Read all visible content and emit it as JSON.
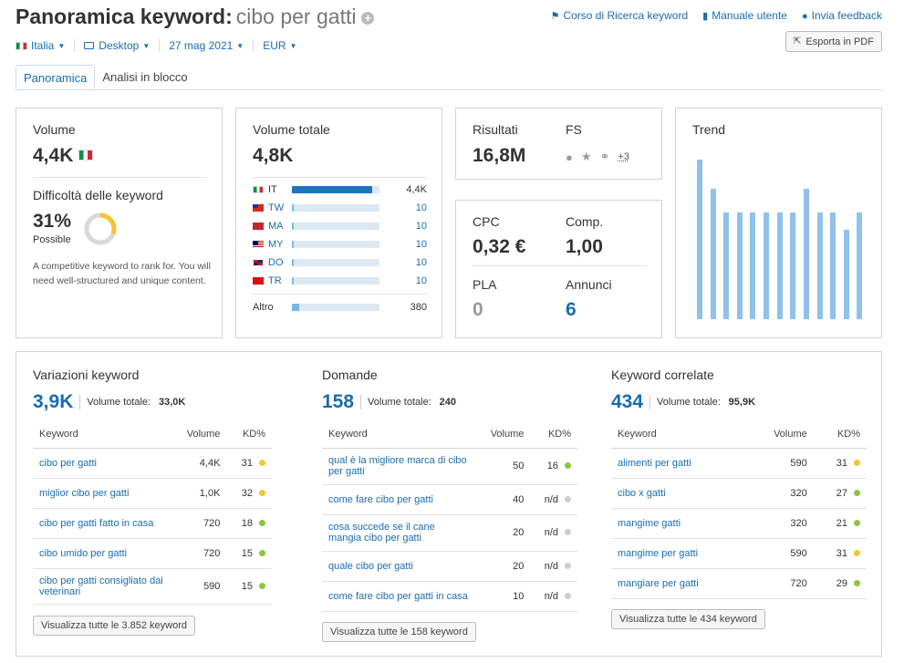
{
  "header": {
    "title": "Panoramica keyword:",
    "keyword": "cibo per gatti",
    "links": [
      {
        "icon": "graduation-cap-icon",
        "label": "Corso di Ricerca keyword"
      },
      {
        "icon": "book-icon",
        "label": "Manuale utente"
      },
      {
        "icon": "speech-bubble-icon",
        "label": "Invia feedback"
      }
    ],
    "filters": {
      "country": "Italia",
      "device": "Desktop",
      "date": "27 mag 2021",
      "currency": "EUR"
    },
    "export_label": "Esporta in PDF"
  },
  "tabs": [
    "Panoramica",
    "Analisi in blocco"
  ],
  "volume": {
    "label": "Volume",
    "value": "4,4K",
    "difficulty_label": "Difficoltà delle keyword",
    "difficulty_value": "31%",
    "difficulty_percent": 31,
    "difficulty_level": "Possible",
    "difficulty_desc": "A competitive keyword to rank for. You will need well-structured and unique content."
  },
  "volume_totale": {
    "label": "Volume totale",
    "value": "4,8K",
    "countries": [
      {
        "code": "IT",
        "value": "4,4K",
        "fill": 0.92
      },
      {
        "code": "TW",
        "value": "10",
        "fill": 0.02
      },
      {
        "code": "MA",
        "value": "10",
        "fill": 0.02
      },
      {
        "code": "MY",
        "value": "10",
        "fill": 0.02
      },
      {
        "code": "DO",
        "value": "10",
        "fill": 0.02
      },
      {
        "code": "TR",
        "value": "10",
        "fill": 0.02
      }
    ],
    "other_label": "Altro",
    "other_value": "380",
    "other_fill": 0.08
  },
  "risultati": {
    "label": "Risultati",
    "value": "16,8M",
    "fs_label": "FS",
    "fs_more": "+3"
  },
  "cpc": {
    "cpc_label": "CPC",
    "cpc_value": "0,32 €",
    "comp_label": "Comp.",
    "comp_value": "1,00",
    "pla_label": "PLA",
    "pla_value": "0",
    "ads_label": "Annunci",
    "ads_value": "6"
  },
  "trend": {
    "label": "Trend",
    "values": [
      1.0,
      0.82,
      0.67,
      0.67,
      0.67,
      0.67,
      0.67,
      0.67,
      0.82,
      0.67,
      0.67,
      0.56,
      0.67
    ]
  },
  "sections": [
    {
      "title": "Variazioni keyword",
      "count": "3,9K",
      "total_label": "Volume totale:",
      "total_value": "33,0K",
      "headers": [
        "Keyword",
        "Volume",
        "KD%"
      ],
      "rows": [
        {
          "kw": "cibo per gatti",
          "vol": "4,4K",
          "kd": "31",
          "dot": "#f5c431"
        },
        {
          "kw": "miglior cibo per gatti",
          "vol": "1,0K",
          "kd": "32",
          "dot": "#f5c431"
        },
        {
          "kw": "cibo per gatti fatto in casa",
          "vol": "720",
          "kd": "18",
          "dot": "#8cc63f"
        },
        {
          "kw": "cibo umido per gatti",
          "vol": "720",
          "kd": "15",
          "dot": "#8cc63f"
        },
        {
          "kw": "cibo per gatti consigliato dai veterinari",
          "vol": "590",
          "kd": "15",
          "dot": "#8cc63f"
        }
      ],
      "button": "Visualizza tutte le 3.852 keyword"
    },
    {
      "title": "Domande",
      "count": "158",
      "total_label": "Volume totale:",
      "total_value": "240",
      "headers": [
        "Keyword",
        "Volume",
        "KD%"
      ],
      "rows": [
        {
          "kw": "qual è la migliore marca di cibo per gatti",
          "vol": "50",
          "kd": "16",
          "dot": "#8cc63f"
        },
        {
          "kw": "come fare cibo per gatti",
          "vol": "40",
          "kd": "n/d",
          "dot": "#cccccc"
        },
        {
          "kw": "cosa succede se il cane mangia cibo per gatti",
          "vol": "20",
          "kd": "n/d",
          "dot": "#cccccc"
        },
        {
          "kw": "quale cibo per gatti",
          "vol": "20",
          "kd": "n/d",
          "dot": "#cccccc"
        },
        {
          "kw": "come fare cibo per gatti in casa",
          "vol": "10",
          "kd": "n/d",
          "dot": "#cccccc"
        }
      ],
      "button": "Visualizza tutte le 158 keyword"
    },
    {
      "title": "Keyword correlate",
      "count": "434",
      "total_label": "Volume totale:",
      "total_value": "95,9K",
      "headers": [
        "Keyword",
        "Volume",
        "KD%"
      ],
      "rows": [
        {
          "kw": "alimenti per gatti",
          "vol": "590",
          "kd": "31",
          "dot": "#f5c431"
        },
        {
          "kw": "cibo x gatti",
          "vol": "320",
          "kd": "27",
          "dot": "#8cc63f"
        },
        {
          "kw": "mangime gatti",
          "vol": "320",
          "kd": "21",
          "dot": "#8cc63f"
        },
        {
          "kw": "mangime per gatti",
          "vol": "590",
          "kd": "31",
          "dot": "#f5c431"
        },
        {
          "kw": "mangiare per gatti",
          "vol": "720",
          "kd": "29",
          "dot": "#8cc63f"
        }
      ],
      "button": "Visualizza tutte le 434 keyword"
    }
  ]
}
